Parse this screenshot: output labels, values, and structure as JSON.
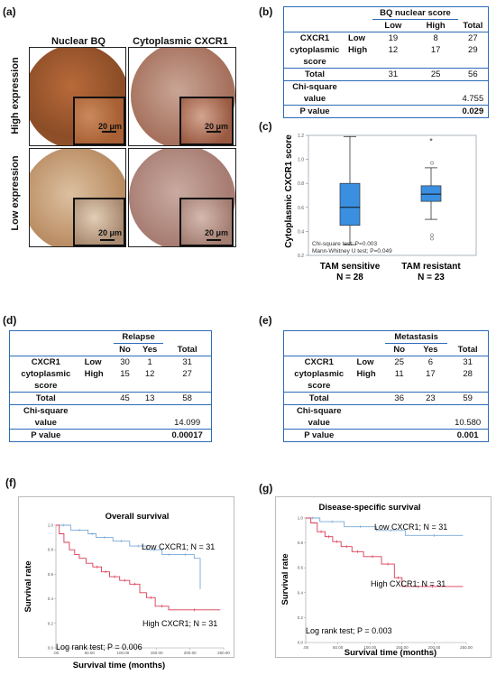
{
  "panel_labels": {
    "a": "(a)",
    "b": "(b)",
    "c": "(c)",
    "d": "(d)",
    "e": "(e)",
    "f": "(f)",
    "g": "(g)"
  },
  "ihc": {
    "col1_title": "Nuclear BQ",
    "col2_title": "Cytoplasmic CXCR1",
    "row1_label": "High expression",
    "row2_label": "Low expression",
    "scale_bar": "20 μm"
  },
  "table_b": {
    "header": "BQ nuclear score",
    "col_low": "Low",
    "col_high": "High",
    "col_total": "Total",
    "row_label1": "CXCR1",
    "row_label2": "cytoplasmic",
    "row_label3": "score",
    "row_low": "Low",
    "row_high": "High",
    "low_vals": [
      "19",
      "8",
      "27"
    ],
    "high_vals": [
      "12",
      "17",
      "29"
    ],
    "total_label": "Total",
    "total_vals": [
      "31",
      "25",
      "56"
    ],
    "chi_label1": "Chi-square",
    "chi_label2": "value",
    "chi_val": "4.755",
    "p_label": "P value",
    "p_val": "0.029"
  },
  "table_d": {
    "header": "Relapse",
    "col_a": "No",
    "col_b": "Yes",
    "col_total": "Total",
    "row_label1": "CXCR1",
    "row_label2": "cytoplasmic",
    "row_label3": "score",
    "row_low": "Low",
    "row_high": "High",
    "low_vals": [
      "30",
      "1",
      "31"
    ],
    "high_vals": [
      "15",
      "12",
      "27"
    ],
    "total_label": "Total",
    "total_vals": [
      "45",
      "13",
      "58"
    ],
    "chi_label1": "Chi-square",
    "chi_label2": "value",
    "chi_val": "14.099",
    "p_label": "P value",
    "p_val": "0.00017"
  },
  "table_e": {
    "header": "Metastasis",
    "col_a": "No",
    "col_b": "Yes",
    "col_total": "Total",
    "row_label1": "CXCR1",
    "row_label2": "cytoplasmic",
    "row_label3": "score",
    "row_low": "Low",
    "row_high": "High",
    "low_vals": [
      "25",
      "6",
      "31"
    ],
    "high_vals": [
      "11",
      "17",
      "28"
    ],
    "total_label": "Total",
    "total_vals": [
      "36",
      "23",
      "59"
    ],
    "chi_label1": "Chi-square",
    "chi_label2": "value",
    "chi_val": "10.580",
    "p_label": "P value",
    "p_val": "0.001"
  },
  "chart_data": [
    {
      "type": "box",
      "ylabel": "Cytoplasmic CXCR1 score",
      "ylim": [
        0.2,
        1.2
      ],
      "yticks": [
        "0.2",
        "0.4",
        "0.6",
        "0.8",
        "1.0",
        "1.2"
      ],
      "categories": [
        "TAM sensitive",
        "TAM resistant"
      ],
      "category_n": [
        "N = 28",
        "N = 23"
      ],
      "boxes": [
        {
          "min": 0.29,
          "q1": 0.45,
          "median": 0.6,
          "q3": 0.8,
          "max": 1.19,
          "outliers": []
        },
        {
          "min": 0.5,
          "q1": 0.65,
          "median": 0.71,
          "q3": 0.78,
          "max": 0.93,
          "outliers": [
            0.97,
            0.37,
            0.34
          ],
          "extreme": [
            1.15
          ]
        }
      ],
      "annotations": [
        "Chi-square test: P=0.003",
        "Mann-Whitney U test; P=0.049"
      ],
      "colors": {
        "box": "#3a8fe0",
        "outlier": "#8a8a8a"
      }
    },
    {
      "type": "line",
      "title": "Overall survival",
      "xlabel": "Survival time (months)",
      "ylabel": "Survival rate",
      "xlim": [
        0,
        250
      ],
      "ylim": [
        0,
        1.0
      ],
      "xticks": [
        ".00",
        "50.00",
        "100.00",
        "150.00",
        "200.00",
        "250.00"
      ],
      "yticks": [
        "0.0",
        "0.2",
        "0.4",
        "0.6",
        "0.8",
        "1.0"
      ],
      "series": [
        {
          "name": "Low CXCR1; N = 31",
          "color": "#7aa8d8",
          "x": [
            0,
            22,
            22,
            48,
            48,
            60,
            60,
            85,
            85,
            110,
            110,
            135,
            135,
            158,
            158,
            180,
            180,
            206,
            206,
            215,
            215
          ],
          "y": [
            1.0,
            1.0,
            0.96,
            0.96,
            0.93,
            0.93,
            0.9,
            0.9,
            0.87,
            0.87,
            0.83,
            0.83,
            0.8,
            0.8,
            0.76,
            0.76,
            0.76,
            0.76,
            0.73,
            0.73,
            0.48
          ]
        },
        {
          "name": "High CXCR1; N = 31",
          "color": "#d93a52",
          "x": [
            0,
            5,
            5,
            12,
            12,
            20,
            20,
            28,
            28,
            35,
            35,
            45,
            45,
            55,
            55,
            68,
            68,
            80,
            80,
            95,
            95,
            110,
            110,
            125,
            125,
            135,
            135,
            148,
            148,
            168,
            168,
            245
          ],
          "y": [
            1.0,
            1.0,
            0.93,
            0.93,
            0.86,
            0.86,
            0.8,
            0.8,
            0.76,
            0.76,
            0.73,
            0.73,
            0.69,
            0.69,
            0.66,
            0.66,
            0.62,
            0.62,
            0.58,
            0.58,
            0.55,
            0.55,
            0.52,
            0.52,
            0.45,
            0.45,
            0.41,
            0.41,
            0.34,
            0.34,
            0.31,
            0.31
          ]
        }
      ],
      "annotations": [
        "Log rank test; P = 0.006"
      ]
    },
    {
      "type": "line",
      "title": "Disease-specific survival",
      "xlabel": "Survival time (months)",
      "ylabel": "Survival rate",
      "xlim": [
        0,
        250
      ],
      "ylim": [
        0,
        1.0
      ],
      "xticks": [
        ".00",
        "50.00",
        "100.00",
        "150.00",
        "200.00",
        "250.00"
      ],
      "yticks": [
        "0.0",
        "0.2",
        "0.4",
        "0.6",
        "0.8",
        "1.0"
      ],
      "series": [
        {
          "name": "Low CXCR1; N = 31",
          "color": "#7aa8d8",
          "x": [
            0,
            22,
            22,
            60,
            60,
            110,
            110,
            155,
            155,
            245
          ],
          "y": [
            1.0,
            1.0,
            0.97,
            0.97,
            0.93,
            0.93,
            0.9,
            0.9,
            0.86,
            0.86
          ]
        },
        {
          "name": "High CXCR1; N = 31",
          "color": "#d93a52",
          "x": [
            0,
            8,
            8,
            18,
            18,
            30,
            30,
            42,
            42,
            55,
            55,
            72,
            72,
            90,
            90,
            118,
            118,
            138,
            138,
            150,
            150,
            245
          ],
          "y": [
            1.0,
            1.0,
            0.96,
            0.96,
            0.89,
            0.89,
            0.85,
            0.85,
            0.81,
            0.81,
            0.77,
            0.77,
            0.73,
            0.73,
            0.69,
            0.69,
            0.63,
            0.63,
            0.52,
            0.52,
            0.45,
            0.45
          ]
        }
      ],
      "annotations": [
        "Log rank test; P = 0.003"
      ]
    }
  ]
}
